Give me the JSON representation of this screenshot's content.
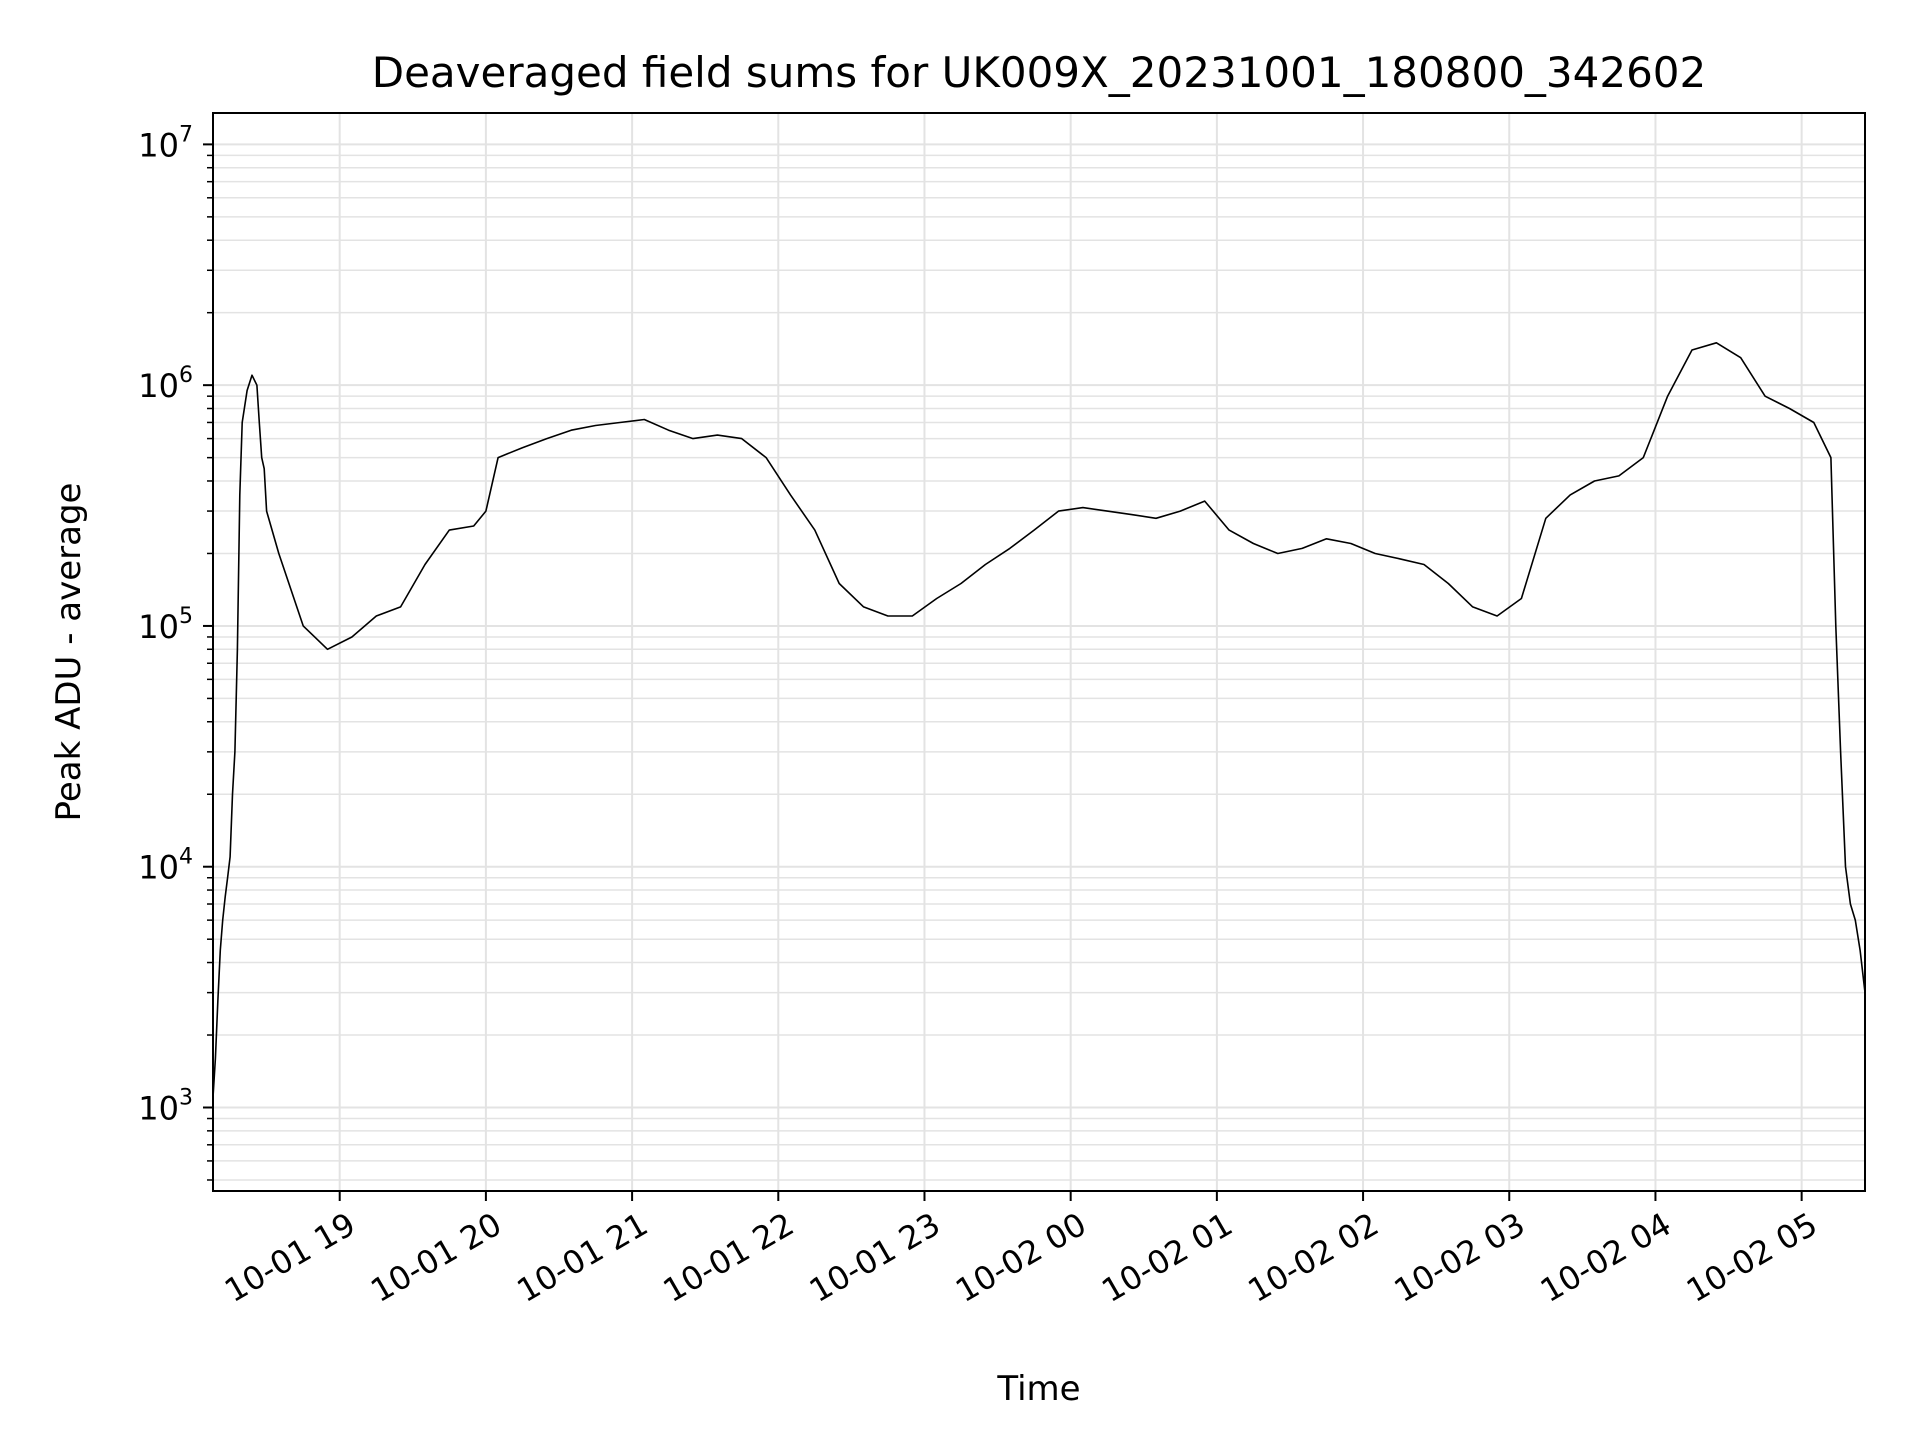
{
  "chart_data": {
    "type": "line",
    "title": "Deaveraged field sums for UK009X_20231001_180800_342602",
    "xlabel": "Time",
    "ylabel": "Peak ADU - average",
    "yscale": "log",
    "grid": true,
    "legend": "none",
    "line_color": "#000000",
    "grid_color": "#e3e3e3",
    "xlim": [
      "2023-10-01 18:08",
      "2023-10-02 05:26"
    ],
    "ylim": [
      450,
      13500000
    ],
    "x_ticks": [
      {
        "value": "2023-10-01 19:00",
        "label": "10-01 19"
      },
      {
        "value": "2023-10-01 20:00",
        "label": "10-01 20"
      },
      {
        "value": "2023-10-01 21:00",
        "label": "10-01 21"
      },
      {
        "value": "2023-10-01 22:00",
        "label": "10-01 22"
      },
      {
        "value": "2023-10-01 23:00",
        "label": "10-01 23"
      },
      {
        "value": "2023-10-02 00:00",
        "label": "10-02 00"
      },
      {
        "value": "2023-10-02 01:00",
        "label": "10-02 01"
      },
      {
        "value": "2023-10-02 02:00",
        "label": "10-02 02"
      },
      {
        "value": "2023-10-02 03:00",
        "label": "10-02 03"
      },
      {
        "value": "2023-10-02 04:00",
        "label": "10-02 04"
      },
      {
        "value": "2023-10-02 05:00",
        "label": "10-02 05"
      }
    ],
    "y_ticks": [
      {
        "value": 1000,
        "base": "10",
        "exp": "3"
      },
      {
        "value": 10000,
        "base": "10",
        "exp": "4"
      },
      {
        "value": 100000,
        "base": "10",
        "exp": "5"
      },
      {
        "value": 1000000,
        "base": "10",
        "exp": "6"
      },
      {
        "value": 10000000,
        "base": "10",
        "exp": "7"
      }
    ],
    "series": [
      {
        "x": [
          "2023-10-01 18:08",
          "2023-10-01 18:09",
          "2023-10-01 18:10",
          "2023-10-01 18:11",
          "2023-10-01 18:12",
          "2023-10-01 18:13",
          "2023-10-01 18:14",
          "2023-10-01 18:15",
          "2023-10-01 18:16",
          "2023-10-01 18:17",
          "2023-10-01 18:18",
          "2023-10-01 18:19",
          "2023-10-01 18:20",
          "2023-10-01 18:22",
          "2023-10-01 18:24",
          "2023-10-01 18:26",
          "2023-10-01 18:27",
          "2023-10-01 18:28",
          "2023-10-01 18:29",
          "2023-10-01 18:30",
          "2023-10-01 18:35",
          "2023-10-01 18:45",
          "2023-10-01 18:55",
          "2023-10-01 19:05",
          "2023-10-01 19:15",
          "2023-10-01 19:25",
          "2023-10-01 19:35",
          "2023-10-01 19:45",
          "2023-10-01 19:55",
          "2023-10-01 20:00",
          "2023-10-01 20:05",
          "2023-10-01 20:15",
          "2023-10-01 20:25",
          "2023-10-01 20:35",
          "2023-10-01 20:45",
          "2023-10-01 20:55",
          "2023-10-01 21:05",
          "2023-10-01 21:15",
          "2023-10-01 21:25",
          "2023-10-01 21:35",
          "2023-10-01 21:45",
          "2023-10-01 21:55",
          "2023-10-01 22:05",
          "2023-10-01 22:15",
          "2023-10-01 22:25",
          "2023-10-01 22:35",
          "2023-10-01 22:45",
          "2023-10-01 22:55",
          "2023-10-01 23:05",
          "2023-10-01 23:15",
          "2023-10-01 23:25",
          "2023-10-01 23:35",
          "2023-10-01 23:45",
          "2023-10-01 23:55",
          "2023-10-02 00:05",
          "2023-10-02 00:15",
          "2023-10-02 00:25",
          "2023-10-02 00:35",
          "2023-10-02 00:45",
          "2023-10-02 00:55",
          "2023-10-02 01:05",
          "2023-10-02 01:15",
          "2023-10-02 01:25",
          "2023-10-02 01:35",
          "2023-10-02 01:45",
          "2023-10-02 01:55",
          "2023-10-02 02:05",
          "2023-10-02 02:15",
          "2023-10-02 02:25",
          "2023-10-02 02:35",
          "2023-10-02 02:45",
          "2023-10-02 02:55",
          "2023-10-02 03:05",
          "2023-10-02 03:15",
          "2023-10-02 03:25",
          "2023-10-02 03:35",
          "2023-10-02 03:45",
          "2023-10-02 03:55",
          "2023-10-02 04:05",
          "2023-10-02 04:15",
          "2023-10-02 04:25",
          "2023-10-02 04:35",
          "2023-10-02 04:45",
          "2023-10-02 04:55",
          "2023-10-02 05:05",
          "2023-10-02 05:12",
          "2023-10-02 05:14",
          "2023-10-02 05:16",
          "2023-10-02 05:18",
          "2023-10-02 05:20",
          "2023-10-02 05:22",
          "2023-10-02 05:24",
          "2023-10-02 05:26"
        ],
        "y": [
          1100,
          1600,
          2800,
          4500,
          6000,
          7500,
          9000,
          11000,
          20000,
          30000,
          80000,
          350000,
          700000,
          950000,
          1100000,
          1000000,
          700000,
          500000,
          450000,
          300000,
          200000,
          100000,
          80000,
          90000,
          110000,
          120000,
          180000,
          250000,
          260000,
          300000,
          500000,
          550000,
          600000,
          650000,
          680000,
          700000,
          720000,
          650000,
          600000,
          620000,
          600000,
          500000,
          350000,
          250000,
          150000,
          120000,
          110000,
          110000,
          130000,
          150000,
          180000,
          210000,
          250000,
          300000,
          310000,
          300000,
          290000,
          280000,
          300000,
          330000,
          250000,
          220000,
          200000,
          210000,
          230000,
          220000,
          200000,
          190000,
          180000,
          150000,
          120000,
          110000,
          130000,
          280000,
          350000,
          400000,
          420000,
          500000,
          900000,
          1400000,
          1500000,
          1300000,
          900000,
          800000,
          700000,
          500000,
          100000,
          30000,
          10000,
          7000,
          6000,
          4500,
          3000
        ]
      }
    ]
  }
}
